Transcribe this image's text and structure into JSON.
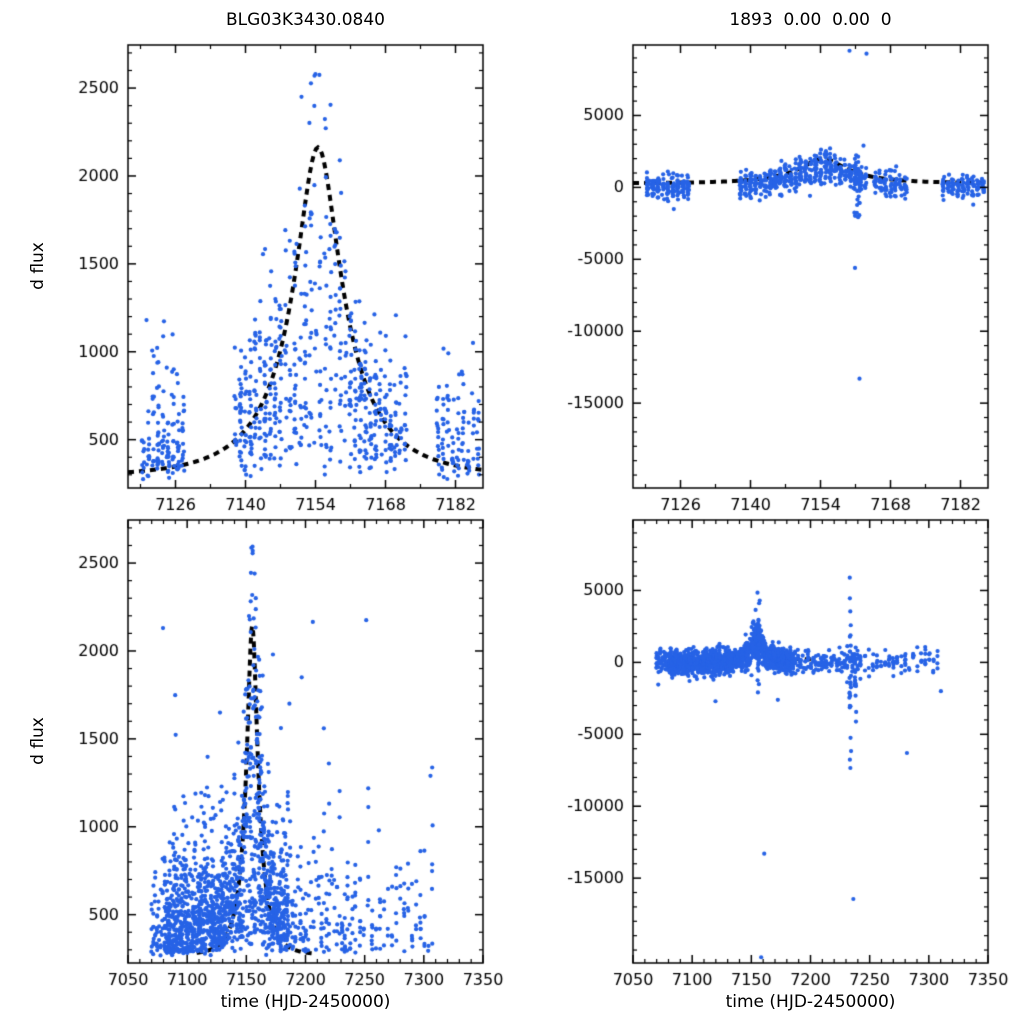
{
  "figure": {
    "background": "#ffffff",
    "point_color": "#2763e6",
    "model_color": "#000000"
  },
  "chart_data": [
    {
      "id": "top-left",
      "type": "scatter",
      "title": "BLG03K3430.0840",
      "ylabel": "d flux",
      "xlabel": "",
      "xlim": [
        7116.5,
        7187.5
      ],
      "ylim": [
        225,
        2745
      ],
      "xticks": [
        7126,
        7140,
        7154,
        7168,
        7182
      ],
      "yticks": [
        500,
        1000,
        1500,
        2000,
        2500
      ],
      "xminor": 7,
      "yminor": 100,
      "grid": false,
      "legend": false,
      "model": {
        "style": "dashed",
        "base": 290,
        "fs": 700,
        "t0": 7154.5,
        "tE": 16,
        "u0": 0.28,
        "range": [
          7116.5,
          7187.5
        ],
        "peak_flux": 2150
      },
      "scatter": {
        "seed": 7,
        "mode": "flux",
        "floor": 300,
        "up_noise": 260,
        "track": 1.15,
        "jitter": 0.25,
        "night_ranges": [
          {
            "from": 7119.5,
            "to": 7127.5,
            "step": 1,
            "nmin": 10,
            "nmax": 22
          },
          {
            "from": 7138,
            "to": 7172,
            "step": 1,
            "nmin": 10,
            "nmax": 26
          },
          {
            "from": 7178.5,
            "to": 7186.5,
            "step": 1,
            "nmin": 7,
            "nmax": 15
          }
        ]
      },
      "outliers": [
        [
          7120.2,
          1180
        ],
        [
          7143.5,
          1555
        ],
        [
          7153.8,
          2570
        ],
        [
          7151.2,
          2450
        ],
        [
          7185.5,
          1050
        ]
      ]
    },
    {
      "id": "top-right",
      "type": "scatter",
      "title": "1893  0.00  0.00  0",
      "ylabel": "",
      "xlabel": "",
      "xlim": [
        7116.5,
        7187.5
      ],
      "ylim": [
        -20900,
        9900
      ],
      "xticks": [
        7126,
        7140,
        7154,
        7168,
        7182
      ],
      "yticks": [
        -15000,
        -10000,
        -5000,
        0,
        5000
      ],
      "xminor": 7,
      "yminor": 1000,
      "grid": false,
      "legend": false,
      "model": {
        "style": "dashed",
        "base": 280,
        "fs": 640,
        "t0": 7154.5,
        "tE": 16,
        "u0": 0.28,
        "range": [
          7116.5,
          7187.5
        ],
        "peak_flux": 2000
      },
      "scatter": {
        "seed": 13,
        "mode": "residual",
        "sigma": 430,
        "track_lo": 0.4,
        "track_hi": 1.35,
        "jitter": 0.25,
        "night_ranges": [
          {
            "from": 7119.5,
            "to": 7127.5,
            "step": 1,
            "nmin": 10,
            "nmax": 22
          },
          {
            "from": 7138,
            "to": 7163,
            "step": 1,
            "nmin": 10,
            "nmax": 26
          },
          {
            "from": 7165,
            "to": 7171,
            "step": 1,
            "nmin": 8,
            "nmax": 18
          },
          {
            "from": 7178.5,
            "to": 7186.5,
            "step": 1,
            "nmin": 7,
            "nmax": 15
          }
        ],
        "spikes": [
          {
            "t": 7161.3,
            "sigma": 1400,
            "n": 26,
            "bias": 0
          }
        ]
      },
      "outliers": [
        [
          7159.8,
          9500
        ],
        [
          7163.2,
          9300
        ],
        [
          7160.9,
          -5600
        ],
        [
          7161.8,
          -13300
        ],
        [
          7162.6,
          2900
        ]
      ]
    },
    {
      "id": "bottom-left",
      "type": "scatter",
      "title": "",
      "ylabel": "d flux",
      "xlabel": "time (HJD-2450000)",
      "xlim": [
        7050,
        7350
      ],
      "ylim": [
        225,
        2745
      ],
      "xticks": [
        7050,
        7100,
        7150,
        7200,
        7250,
        7300,
        7350
      ],
      "yticks": [
        500,
        1000,
        1500,
        2000,
        2500
      ],
      "xminor": 10,
      "yminor": 100,
      "grid": false,
      "legend": false,
      "model": {
        "style": "dashed",
        "base": 270,
        "fs": 700,
        "t0": 7155,
        "tE": 16,
        "u0": 0.28,
        "range": [
          7108,
          7207
        ],
        "peak_flux": 2130
      },
      "scatter": {
        "seed": 29,
        "mode": "flux",
        "floor": 295,
        "up_noise": 255,
        "track": 1.15,
        "jitter": 0.3,
        "night_ranges": [
          {
            "from": 7070,
            "to": 7079,
            "step": 1.5,
            "nmin": 4,
            "nmax": 10
          },
          {
            "from": 7081,
            "to": 7185,
            "step": 1,
            "nmin": 7,
            "nmax": 20
          },
          {
            "from": 7187,
            "to": 7243,
            "step": 2.2,
            "nmin": 3,
            "nmax": 9
          },
          {
            "from": 7246,
            "to": 7310,
            "step": 3.4,
            "nmin": 2,
            "nmax": 7
          }
        ]
      },
      "outliers": [
        [
          7079.6,
          2130
        ],
        [
          7155.4,
          2570
        ],
        [
          7157.0,
          2440
        ],
        [
          7163.8,
          1860
        ],
        [
          7172.5,
          1980
        ],
        [
          7186.4,
          1700
        ],
        [
          7196.8,
          1850
        ],
        [
          7206.2,
          2165
        ],
        [
          7215.5,
          1560
        ],
        [
          7251.3,
          2175
        ],
        [
          7262.0,
          980
        ],
        [
          7305.6,
          1290
        ]
      ]
    },
    {
      "id": "bottom-right",
      "type": "scatter",
      "title": "",
      "ylabel": "",
      "xlabel": "time (HJD-2450000)",
      "xlim": [
        7050,
        7350
      ],
      "ylim": [
        -20900,
        9900
      ],
      "xticks": [
        7050,
        7100,
        7150,
        7200,
        7250,
        7300,
        7350
      ],
      "yticks": [
        -15000,
        -10000,
        -5000,
        0,
        5000
      ],
      "xminor": 10,
      "yminor": 1000,
      "grid": false,
      "legend": false,
      "model": {
        "style": "dashed",
        "base": 200,
        "fs": 640,
        "t0": 7155,
        "tE": 16,
        "u0": 0.28,
        "range": [
          7112,
          7203
        ],
        "peak_flux": 2000
      },
      "scatter": {
        "seed": 41,
        "mode": "residual",
        "sigma": 420,
        "track_lo": 0.4,
        "track_hi": 1.5,
        "jitter": 0.3,
        "night_ranges": [
          {
            "from": 7070,
            "to": 7079,
            "step": 1.5,
            "nmin": 4,
            "nmax": 10
          },
          {
            "from": 7081,
            "to": 7185,
            "step": 1,
            "nmin": 7,
            "nmax": 20
          },
          {
            "from": 7187,
            "to": 7243,
            "step": 2.2,
            "nmin": 3,
            "nmax": 9
          },
          {
            "from": 7246,
            "to": 7310,
            "step": 3.4,
            "nmin": 2,
            "nmax": 7
          }
        ],
        "spikes": [
          {
            "t": 7156,
            "sigma": 1300,
            "n": 22,
            "bias": 200
          },
          {
            "t": 7233.5,
            "sigma": 2800,
            "n": 24,
            "bias": -1400
          },
          {
            "t": 7238,
            "sigma": 2000,
            "n": 14,
            "bias": -900
          }
        ]
      },
      "outliers": [
        [
          7155.2,
          4850
        ],
        [
          7157.1,
          4300
        ],
        [
          7153.6,
          3650
        ],
        [
          7160.9,
          -13300
        ],
        [
          7236.2,
          -16450
        ],
        [
          7158.3,
          -20500
        ],
        [
          7172.4,
          -2600
        ],
        [
          7281.5,
          -6300
        ],
        [
          7119.7,
          -2700
        ],
        [
          7310.2,
          -2000
        ]
      ]
    }
  ]
}
